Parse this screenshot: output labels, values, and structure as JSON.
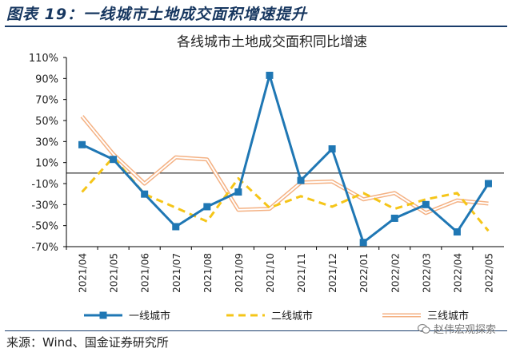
{
  "figure_label": "图表 19：一线城市土地成交面积增速提升",
  "source_text": "来源：Wind、国金证券研究所",
  "watermark_text": "赵伟宏观探索",
  "colors": {
    "tier1": "#1f77b4",
    "tier2": "#f5c518",
    "tier3": "#f4b183",
    "frame": "#1a3d6b"
  },
  "chart_data": {
    "type": "line",
    "title": "各线城市土地成交面积同比增速",
    "xlabel": "",
    "ylabel": "",
    "x": [
      "2021/04",
      "2021/05",
      "2021/06",
      "2021/07",
      "2021/08",
      "2021/09",
      "2021/10",
      "2021/11",
      "2021/12",
      "2022/01",
      "2022/02",
      "2022/03",
      "2022/04",
      "2022/05"
    ],
    "ylim": [
      -70,
      110
    ],
    "yticks": [
      110,
      90,
      70,
      50,
      30,
      10,
      -10,
      -30,
      -50,
      -70
    ],
    "ytick_labels": [
      "110%",
      "90%",
      "70%",
      "50%",
      "30%",
      "10%",
      "-10%",
      "-30%",
      "-50%",
      "-70%"
    ],
    "grid": false,
    "legend_position": "bottom",
    "series": [
      {
        "name": "一线城市",
        "values": [
          27,
          13,
          -20,
          -51,
          -32,
          -18,
          93,
          -7,
          23,
          -66,
          -43,
          -30,
          -56,
          -10
        ]
      },
      {
        "name": "二线城市",
        "values": [
          -18,
          15,
          -20,
          -33,
          -46,
          -5,
          -33,
          -22,
          -32,
          -19,
          -34,
          -25,
          -19,
          -55
        ]
      },
      {
        "name": "三线城市",
        "values": [
          54,
          18,
          -10,
          15,
          13,
          -35,
          -34,
          -9,
          -8,
          -25,
          -19,
          -38,
          -26,
          -29
        ]
      }
    ]
  }
}
